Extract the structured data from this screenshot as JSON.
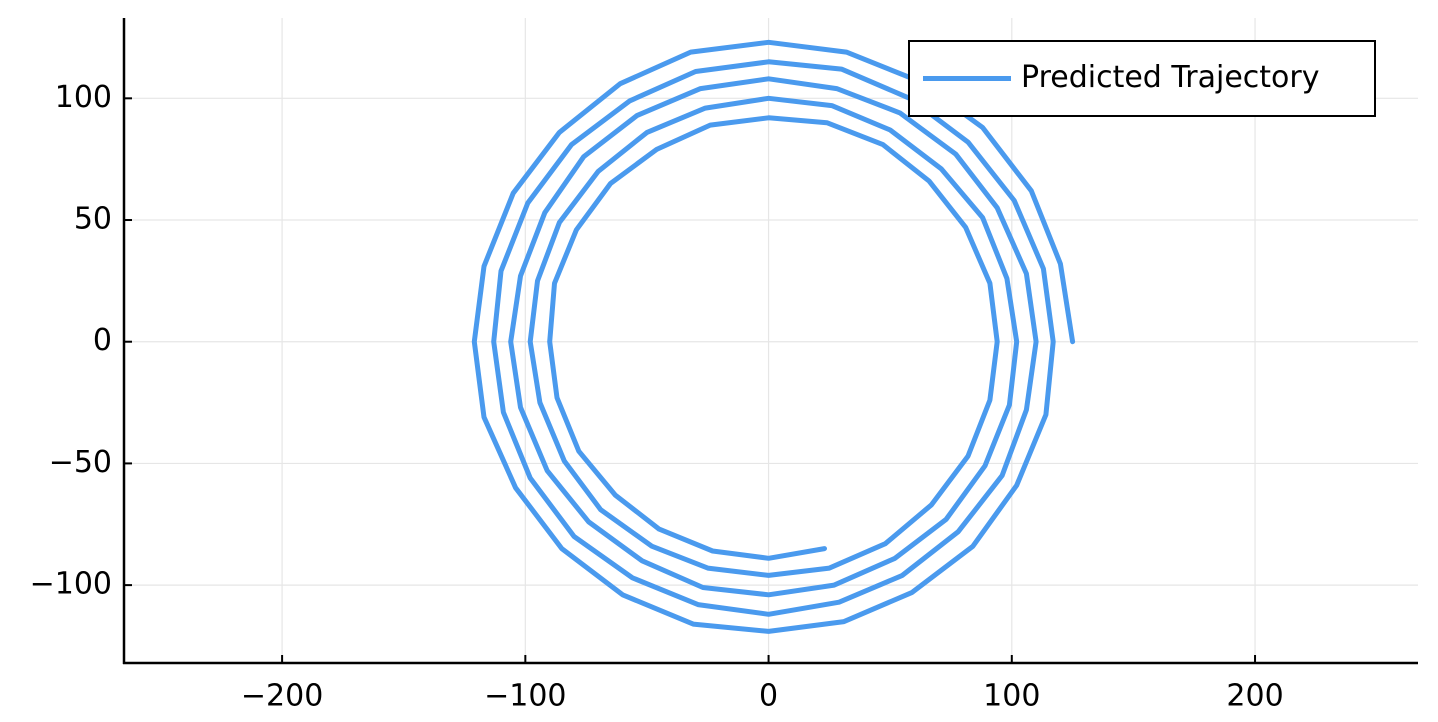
{
  "chart_data": {
    "type": "line",
    "xlim": [
      -265,
      267
    ],
    "ylim": [
      -132,
      133
    ],
    "xticks": [
      {
        "value": -200,
        "label": "−200"
      },
      {
        "value": -100,
        "label": "−100"
      },
      0,
      100,
      200
    ],
    "yticks": [
      {
        "value": -100,
        "label": "−100"
      },
      {
        "value": -50,
        "label": "−50"
      },
      0,
      50,
      100
    ],
    "grid": true,
    "legend": "upper right",
    "series": [
      {
        "name": "Predicted Trajectory",
        "color": "#4a9aee",
        "x": [
          125,
          120,
          108,
          88,
          62,
          32,
          0,
          -32,
          -61,
          -86,
          -105,
          -117,
          -121,
          -117,
          -104,
          -85,
          -60,
          -31,
          0,
          31,
          59,
          84,
          102,
          114,
          117,
          113,
          101,
          82,
          58,
          30,
          0,
          -30,
          -57,
          -81,
          -99,
          -110,
          -113,
          -109,
          -98,
          -80,
          -56,
          -29,
          0,
          29,
          55,
          78,
          96,
          106,
          110,
          106,
          94,
          77,
          54,
          28,
          0,
          -28,
          -54,
          -76,
          -92,
          -102,
          -106,
          -102,
          -91,
          -74,
          -52,
          -27,
          0,
          27,
          52,
          73,
          89,
          99,
          102,
          98,
          88,
          71,
          50,
          26,
          0,
          -26,
          -50,
          -70,
          -86,
          -95,
          -98,
          -94,
          -84,
          -69,
          -48,
          -25,
          0,
          25,
          48,
          67,
          82,
          91,
          94,
          91,
          81,
          66,
          47,
          24,
          0,
          -24,
          -46,
          -65,
          -79,
          -88,
          -90,
          -87,
          -78,
          -63,
          -45,
          -23,
          0,
          23
        ],
        "y": [
          0,
          32,
          62,
          88,
          107,
          119,
          123,
          119,
          106,
          86,
          61,
          31,
          0,
          -31,
          -60,
          -85,
          -104,
          -116,
          -119,
          -115,
          -103,
          -84,
          -59,
          -30,
          0,
          30,
          58,
          82,
          100,
          112,
          115,
          111,
          99,
          81,
          57,
          29,
          0,
          -29,
          -56,
          -80,
          -97,
          -108,
          -112,
          -107,
          -96,
          -78,
          -55,
          -28,
          0,
          28,
          55,
          77,
          94,
          104,
          108,
          104,
          93,
          76,
          53,
          27,
          0,
          -27,
          -53,
          -74,
          -90,
          -101,
          -104,
          -100,
          -89,
          -73,
          -51,
          -26,
          0,
          26,
          51,
          71,
          87,
          97,
          100,
          96,
          86,
          70,
          49,
          25,
          0,
          -25,
          -49,
          -69,
          -84,
          -93,
          -96,
          -93,
          -83,
          -67,
          -47,
          -24,
          0,
          24,
          47,
          66,
          81,
          90,
          92,
          89,
          79,
          65,
          46,
          24,
          0,
          -23,
          -45,
          -63,
          -77,
          -86,
          -89,
          -85
        ]
      }
    ]
  }
}
